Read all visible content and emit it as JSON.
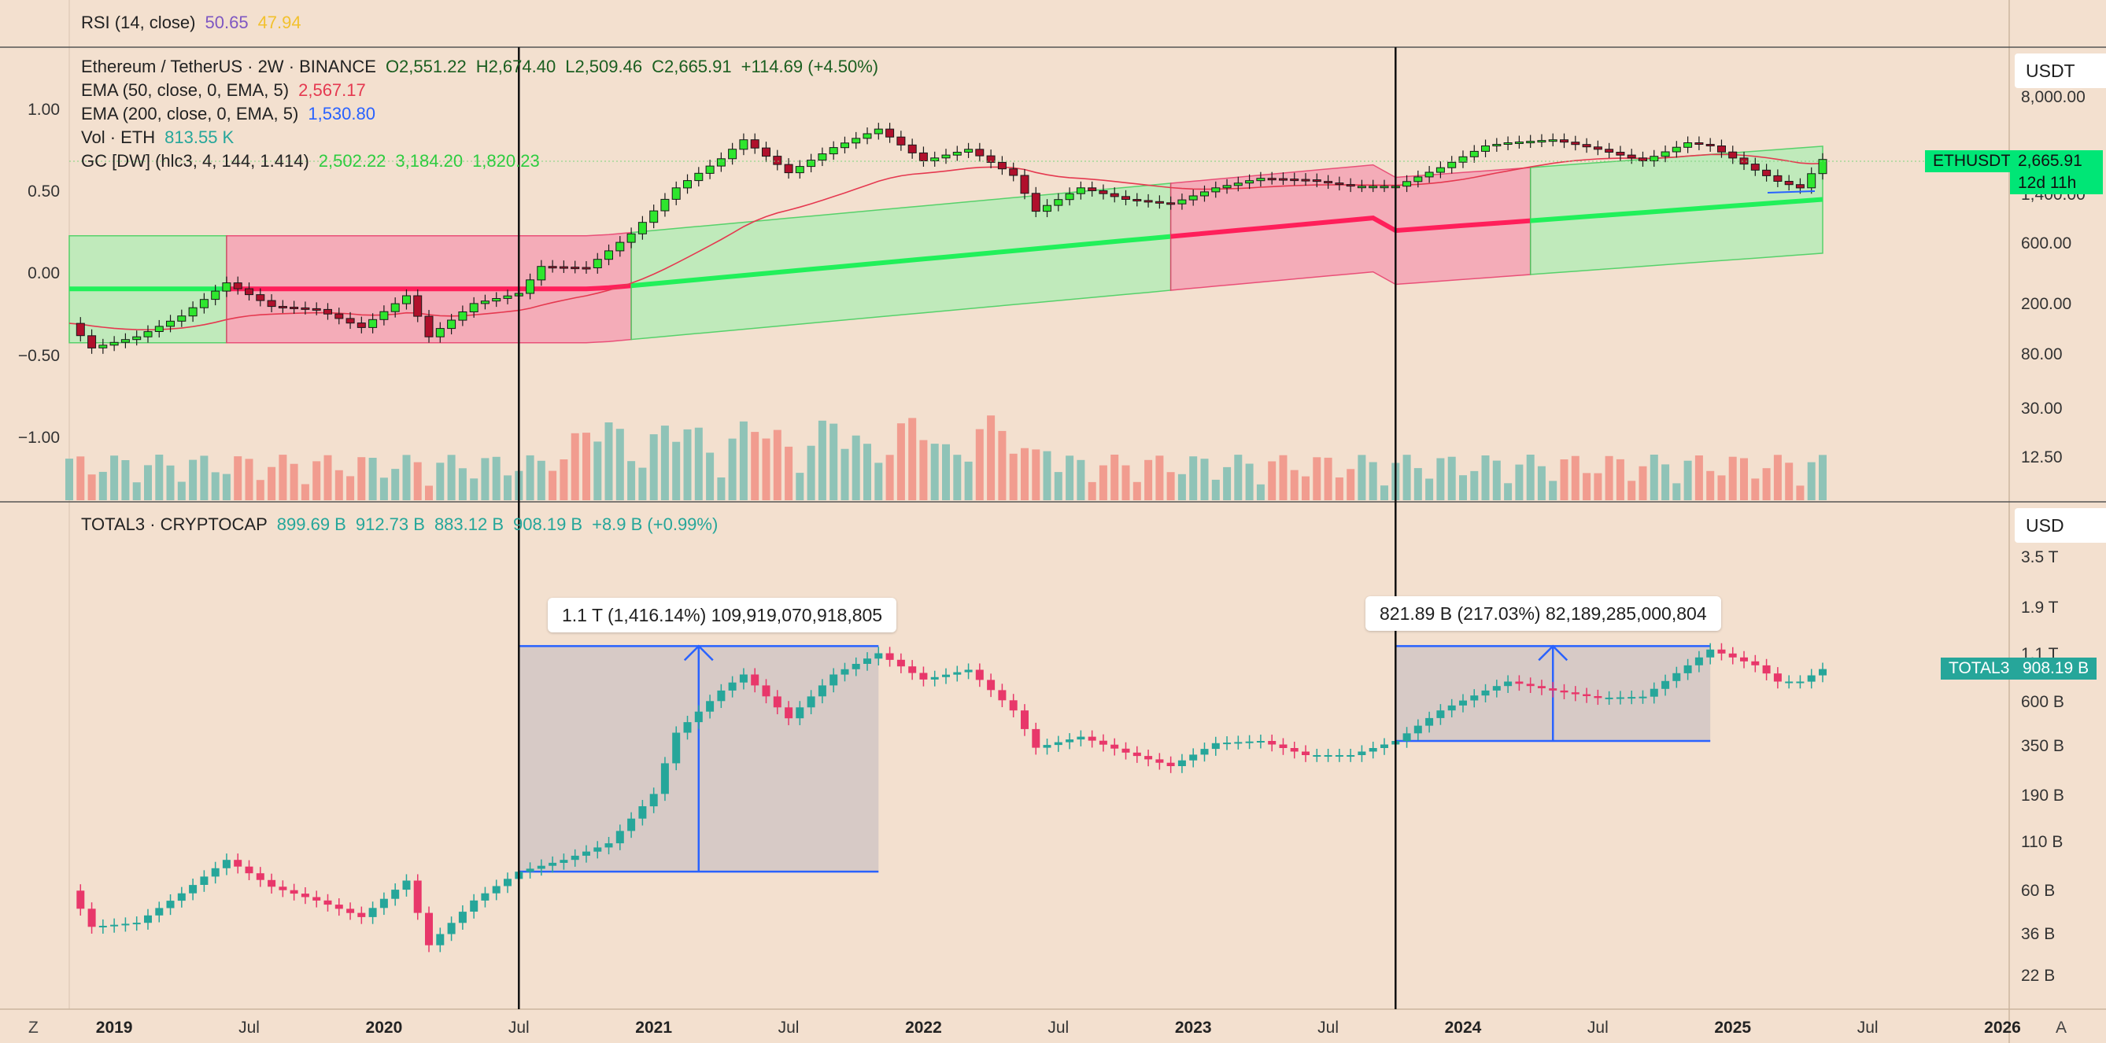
{
  "chart_data": [
    {
      "type": "line",
      "name_label": "RSI (14, close)",
      "values": [
        "50.65",
        "47.94"
      ],
      "colors": [
        "#7e57c2",
        "#f2c12e"
      ]
    },
    {
      "type": "candlestick",
      "symbol": "Ethereum / TetherUS · 2W · BINANCE",
      "ohlc": {
        "o": "O2,551.22",
        "h": "H2,674.40",
        "l": "L2,509.46",
        "c": "C2,665.91",
        "chg": "+114.69 (+4.50%)"
      },
      "indicators": [
        {
          "name": "EMA (50, close, 0, EMA, 5)",
          "value": "2,567.17",
          "color": "#e53950"
        },
        {
          "name": "EMA (200, close, 0, EMA, 5)",
          "value": "1,530.80",
          "color": "#2962ff"
        },
        {
          "name": "Vol · ETH",
          "value": "813.55 K",
          "color": "#26a69a"
        },
        {
          "name": "GC [DW] (hlc3, 4, 144, 1.414)",
          "values": [
            "2,502.22",
            "3,184.20",
            "1,820.23"
          ],
          "color": "#2ecc40"
        }
      ],
      "y_right_ticks": [
        "8,000.00",
        "1,400.00",
        "600.00",
        "200.00",
        "80.00",
        "30.00",
        "12.50"
      ],
      "y_left_ticks": [
        "1.00",
        "0.50",
        "0.00",
        "−0.50",
        "−1.00"
      ],
      "unit": "USDT",
      "badge": {
        "label": "ETHUSDT",
        "price": "2,665.91",
        "countdown": "12d 11h"
      },
      "approx_close_path": [
        [
          "2018-11",
          140
        ],
        [
          "2018-12",
          90
        ],
        [
          "2019-02",
          110
        ],
        [
          "2019-04",
          160
        ],
        [
          "2019-06",
          290
        ],
        [
          "2019-08",
          190
        ],
        [
          "2019-10",
          180
        ],
        [
          "2019-12",
          130
        ],
        [
          "2020-02",
          230
        ],
        [
          "2020-03",
          110
        ],
        [
          "2020-05",
          200
        ],
        [
          "2020-07",
          240
        ],
        [
          "2020-08",
          390
        ],
        [
          "2020-10",
          380
        ],
        [
          "2020-12",
          700
        ],
        [
          "2021-02",
          1600
        ],
        [
          "2021-04",
          2700
        ],
        [
          "2021-05",
          3800
        ],
        [
          "2021-07",
          2100
        ],
        [
          "2021-09",
          3300
        ],
        [
          "2021-11",
          4600
        ],
        [
          "2022-01",
          2600
        ],
        [
          "2022-03",
          3200
        ],
        [
          "2022-05",
          2000
        ],
        [
          "2022-06",
          1050
        ],
        [
          "2022-08",
          1600
        ],
        [
          "2022-10",
          1300
        ],
        [
          "2022-12",
          1200
        ],
        [
          "2023-02",
          1600
        ],
        [
          "2023-04",
          1900
        ],
        [
          "2023-06",
          1850
        ],
        [
          "2023-08",
          1650
        ],
        [
          "2023-10",
          1650
        ],
        [
          "2023-12",
          2300
        ],
        [
          "2024-02",
          3400
        ],
        [
          "2024-03",
          3600
        ],
        [
          "2024-05",
          3800
        ],
        [
          "2024-07",
          3200
        ],
        [
          "2024-09",
          2600
        ],
        [
          "2024-11",
          3600
        ],
        [
          "2024-12",
          3400
        ],
        [
          "2025-02",
          2200
        ],
        [
          "2025-03",
          1800
        ],
        [
          "2025-04",
          1600
        ],
        [
          "2025-05",
          2665
        ]
      ]
    },
    {
      "type": "candlestick",
      "symbol": "TOTAL3 · CRYPTOCAP",
      "ohlc": {
        "o": "899.69 B",
        "h": "912.73 B",
        "l": "883.12 B",
        "c": "908.19 B",
        "chg": "+8.9 B (+0.99%)"
      },
      "y_right_ticks": [
        "3.5 T",
        "1.9 T",
        "1.1 T",
        "600 B",
        "350 B",
        "190 B",
        "110 B",
        "60 B",
        "36 B",
        "22 B"
      ],
      "unit": "USD",
      "badge": {
        "label": "TOTAL3",
        "price": "908.19 B"
      },
      "measurements": [
        {
          "label": "1.1 T (1,416.14%) 109,919,070,918,805",
          "from": "2020-07",
          "to": "2021-11",
          "low": 78,
          "high": 1200
        },
        {
          "label": "821.89 B (217.03%) 82,189,285,000,804",
          "from": "2023-10",
          "to": "2024-12",
          "low": 380,
          "high": 1200
        }
      ],
      "vertical_markers": [
        "2020-07",
        "2023-10"
      ],
      "approx_close_path": [
        [
          "2018-11",
          62
        ],
        [
          "2018-12",
          40
        ],
        [
          "2019-02",
          42
        ],
        [
          "2019-04",
          60
        ],
        [
          "2019-06",
          90
        ],
        [
          "2019-08",
          65
        ],
        [
          "2019-10",
          55
        ],
        [
          "2019-12",
          45
        ],
        [
          "2020-02",
          70
        ],
        [
          "2020-03",
          32
        ],
        [
          "2020-05",
          55
        ],
        [
          "2020-07",
          78
        ],
        [
          "2020-09",
          90
        ],
        [
          "2020-11",
          110
        ],
        [
          "2021-01",
          200
        ],
        [
          "2021-02",
          420
        ],
        [
          "2021-04",
          700
        ],
        [
          "2021-05",
          850
        ],
        [
          "2021-07",
          500
        ],
        [
          "2021-09",
          850
        ],
        [
          "2021-11",
          1100
        ],
        [
          "2022-01",
          800
        ],
        [
          "2022-03",
          900
        ],
        [
          "2022-05",
          550
        ],
        [
          "2022-06",
          350
        ],
        [
          "2022-08",
          400
        ],
        [
          "2022-10",
          330
        ],
        [
          "2022-12",
          280
        ],
        [
          "2023-02",
          370
        ],
        [
          "2023-04",
          380
        ],
        [
          "2023-06",
          320
        ],
        [
          "2023-08",
          320
        ],
        [
          "2023-10",
          380
        ],
        [
          "2023-12",
          550
        ],
        [
          "2024-02",
          700
        ],
        [
          "2024-03",
          780
        ],
        [
          "2024-05",
          700
        ],
        [
          "2024-07",
          640
        ],
        [
          "2024-09",
          650
        ],
        [
          "2024-11",
          950
        ],
        [
          "2024-12",
          1150
        ],
        [
          "2025-02",
          950
        ],
        [
          "2025-03",
          780
        ],
        [
          "2025-04",
          780
        ],
        [
          "2025-05",
          908
        ]
      ]
    }
  ],
  "x_axis": {
    "labels": [
      "2019",
      "Jul",
      "2020",
      "Jul",
      "2021",
      "Jul",
      "2022",
      "Jul",
      "2023",
      "Jul",
      "2024",
      "Jul",
      "2025",
      "Jul",
      "2026"
    ],
    "year_flags": [
      true,
      false,
      true,
      false,
      true,
      false,
      true,
      false,
      true,
      false,
      true,
      false,
      true,
      false,
      true
    ]
  },
  "corners": {
    "left": "Z",
    "right": "A"
  },
  "colors": {
    "up": "#26a69a",
    "down": "#e8376a",
    "eth_up": "#2ee62e",
    "eth_down": "#b0102c",
    "band_green": "#b8ecb8",
    "band_red": "#f5a3b4",
    "volume_up": "#8fc3b7",
    "volume_down": "#f19c8f"
  }
}
